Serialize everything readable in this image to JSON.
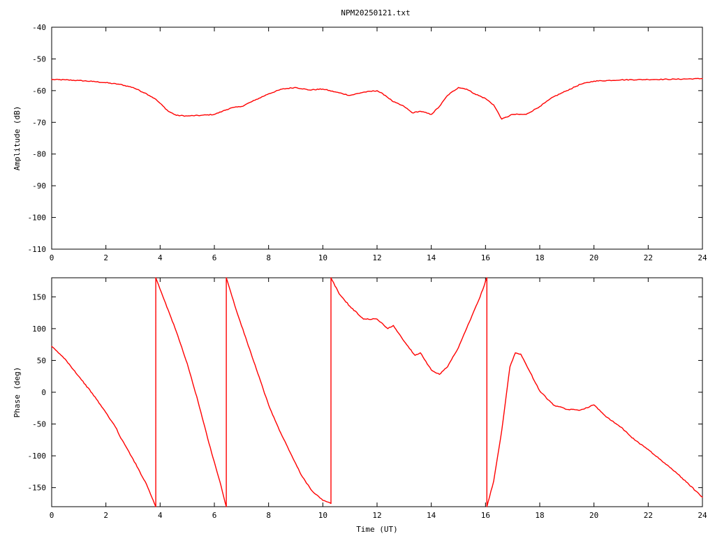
{
  "title": "NPM20250121.txt",
  "chart_data": [
    {
      "type": "line",
      "title": "NPM20250121.txt",
      "xlabel": "",
      "ylabel": "Amplitude (dB)",
      "xlim": [
        0,
        24
      ],
      "ylim": [
        -110,
        -40
      ],
      "grid": false,
      "xticks": [
        0,
        2,
        4,
        6,
        8,
        10,
        12,
        14,
        16,
        18,
        20,
        22,
        24
      ],
      "xtick_labels": [
        "0",
        "2",
        "4",
        "6",
        "8",
        "10",
        "12",
        "14",
        "16",
        "18",
        "20",
        "22",
        "24"
      ],
      "yticks": [
        -110,
        -100,
        -90,
        -80,
        -70,
        -60,
        -50,
        -40
      ],
      "ytick_labels": [
        "-110",
        "-100",
        "-90",
        "-80",
        "-70",
        "-60",
        "-50",
        "-40"
      ],
      "color": "#ff0000",
      "series": [
        {
          "x": [
            0,
            0.5,
            1,
            1.5,
            2,
            2.5,
            3,
            3.5,
            3.8,
            4,
            4.3,
            4.6,
            5,
            5.5,
            6,
            6.3,
            6.6,
            7,
            7.5,
            8,
            8.5,
            9,
            9.5,
            10,
            10.5,
            11,
            11.5,
            12,
            12.3,
            12.6,
            13,
            13.3,
            13.6,
            14,
            14.3,
            14.6,
            15,
            15.3,
            15.6,
            16,
            16.3,
            16.6,
            17,
            17.5,
            18,
            18.5,
            19,
            19.5,
            20,
            21,
            22,
            23,
            24
          ],
          "y": [
            -56.5,
            -56.6,
            -56.8,
            -57.1,
            -57.5,
            -58.0,
            -59.0,
            -61.0,
            -62.5,
            -64.0,
            -66.5,
            -67.8,
            -68.0,
            -67.8,
            -67.5,
            -66.5,
            -65.5,
            -65.0,
            -63.0,
            -61.0,
            -59.5,
            -59.0,
            -59.8,
            -59.5,
            -60.5,
            -61.5,
            -60.5,
            -60.0,
            -61.5,
            -63.5,
            -65.0,
            -67.0,
            -66.5,
            -67.5,
            -65.0,
            -61.5,
            -59.0,
            -59.5,
            -61.0,
            -62.5,
            -64.5,
            -69.0,
            -67.5,
            -67.5,
            -65.0,
            -62.0,
            -60.0,
            -58.0,
            -57.0,
            -56.6,
            -56.5,
            -56.4,
            -56.2
          ]
        }
      ]
    },
    {
      "type": "line",
      "title": "",
      "xlabel": "Time (UT)",
      "ylabel": "Phase (deg)",
      "xlim": [
        0,
        24
      ],
      "ylim": [
        -180,
        180
      ],
      "grid": false,
      "xticks": [
        0,
        2,
        4,
        6,
        8,
        10,
        12,
        14,
        16,
        18,
        20,
        22,
        24
      ],
      "xtick_labels": [
        "0",
        "2",
        "4",
        "6",
        "8",
        "10",
        "12",
        "14",
        "16",
        "18",
        "20",
        "22",
        "24"
      ],
      "yticks": [
        -150,
        -100,
        -50,
        0,
        50,
        100,
        150
      ],
      "ytick_labels": [
        "-150",
        "-100",
        "-50",
        "0",
        "50",
        "100",
        "150"
      ],
      "color": "#ff0000",
      "series": [
        {
          "x": [
            0,
            0.5,
            1,
            1.5,
            2,
            2.4,
            2.5,
            3,
            3.5,
            3.84,
            3.84,
            4.2,
            4.6,
            5,
            5.4,
            5.8,
            6.2,
            6.44,
            6.44,
            6.8,
            7.2,
            7.6,
            8,
            8.4,
            8.8,
            9.2,
            9.6,
            10,
            10.3,
            10.3,
            10.6,
            11,
            11.5,
            12,
            12.4,
            12.6,
            13,
            13.4,
            13.6,
            14,
            14.3,
            14.6,
            15,
            15.4,
            15.8,
            16.05,
            16.05,
            16.3,
            16.6,
            16.9,
            17.1,
            17.3,
            17.6,
            18,
            18.5,
            19,
            19.5,
            20,
            20.5,
            21,
            21.5,
            22,
            22.5,
            23,
            23.5,
            24
          ],
          "y": [
            72,
            52,
            25,
            -2,
            -32,
            -58,
            -68,
            -105,
            -145,
            -180,
            180,
            140,
            95,
            45,
            -15,
            -80,
            -140,
            -180,
            180,
            130,
            80,
            30,
            -20,
            -60,
            -95,
            -130,
            -155,
            -170,
            -175,
            180,
            155,
            135,
            115,
            115,
            100,
            105,
            80,
            58,
            62,
            35,
            28,
            40,
            70,
            110,
            150,
            180,
            -180,
            -140,
            -60,
            40,
            62,
            60,
            35,
            2,
            -20,
            -27,
            -28,
            -20,
            -40,
            -55,
            -75,
            -90,
            -108,
            -125,
            -145,
            -165
          ]
        }
      ]
    }
  ]
}
